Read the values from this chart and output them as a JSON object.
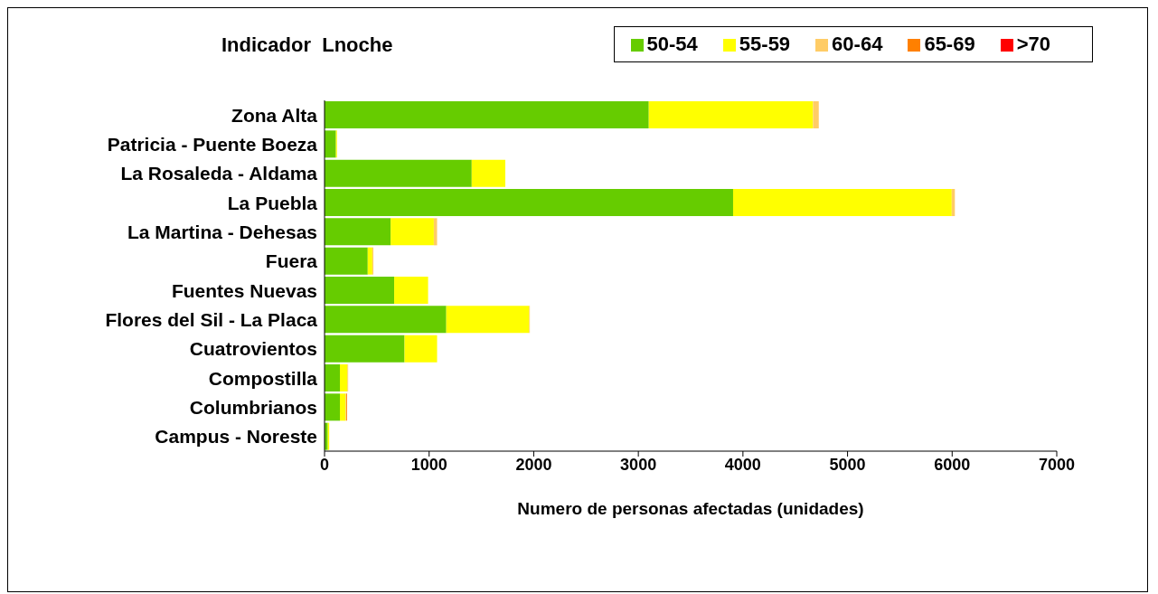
{
  "chart_data": {
    "type": "bar",
    "orientation": "horizontal",
    "stacked": true,
    "title": "Indicador  Lnoche",
    "xlabel": "Numero de personas afectadas (unidades)",
    "categories": [
      "Zona Alta",
      "Patricia - Puente Boeza",
      "La Rosaleda - Aldama",
      "La Puebla",
      "La Martina - Dehesas",
      "Fuera",
      "Fuentes Nuevas",
      "Flores del Sil - La Placa",
      "Cuatrovientos",
      "Compostilla",
      "Columbrianos",
      "Campus - Noreste"
    ],
    "series": [
      {
        "name": "50-54",
        "color": "#66cc00",
        "values": [
          3100,
          109,
          1407,
          3906,
          632,
          413,
          666,
          1164,
          765,
          147,
          147,
          31
        ]
      },
      {
        "name": "55-59",
        "color": "#ffff00",
        "values": [
          1570,
          10,
          321,
          2090,
          413,
          44,
          324,
          792,
          311,
          72,
          55,
          14
        ]
      },
      {
        "name": "60-64",
        "color": "#ffcc66",
        "values": [
          55,
          0,
          0,
          30,
          31,
          10,
          0,
          7,
          0,
          7,
          5,
          0
        ]
      },
      {
        "name": "65-69",
        "color": "#ff8000",
        "values": [
          0,
          0,
          0,
          0,
          0,
          0,
          0,
          0,
          0,
          0,
          8,
          0
        ]
      },
      {
        "name": ">70",
        "color": "#ff0000",
        "values": [
          0,
          0,
          0,
          0,
          0,
          0,
          0,
          0,
          0,
          0,
          0,
          0
        ]
      }
    ],
    "xlim": [
      0,
      7000
    ],
    "xticks": [
      0,
      1000,
      2000,
      3000,
      4000,
      5000,
      6000,
      7000
    ],
    "grid": false,
    "legend": "top right"
  }
}
